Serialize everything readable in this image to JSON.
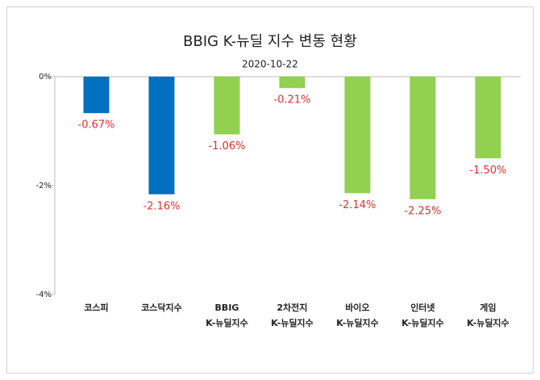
{
  "chart_data": {
    "type": "bar",
    "title": "BBIG K-뉴딜 지수 변동 현황",
    "subtitle": "2020-10-22",
    "categories": [
      [
        "코스피"
      ],
      [
        "코스닥지수"
      ],
      [
        "BBIG",
        "K-뉴딜지수"
      ],
      [
        "2차전지",
        "K-뉴딜지수"
      ],
      [
        "바이오",
        "K-뉴딜지수"
      ],
      [
        "인터넷",
        "K-뉴딜지수"
      ],
      [
        "게임",
        "K-뉴딜지수"
      ]
    ],
    "values": [
      -0.67,
      -2.16,
      -1.06,
      -0.21,
      -2.14,
      -2.25,
      -1.5
    ],
    "value_labels": [
      "-0.67%",
      "-2.16%",
      "-1.06%",
      "-0.21%",
      "-2.14%",
      "-2.25%",
      "-1.50%"
    ],
    "colors": [
      "#0070c0",
      "#0070c0",
      "#92d050",
      "#92d050",
      "#92d050",
      "#92d050",
      "#92d050"
    ],
    "label_color": "#e03030",
    "ylim": [
      -4,
      0
    ],
    "yticks": [
      {
        "value": 0,
        "label": "0%"
      },
      {
        "value": -2,
        "label": "-2%"
      },
      {
        "value": -4,
        "label": "-4%"
      }
    ]
  }
}
